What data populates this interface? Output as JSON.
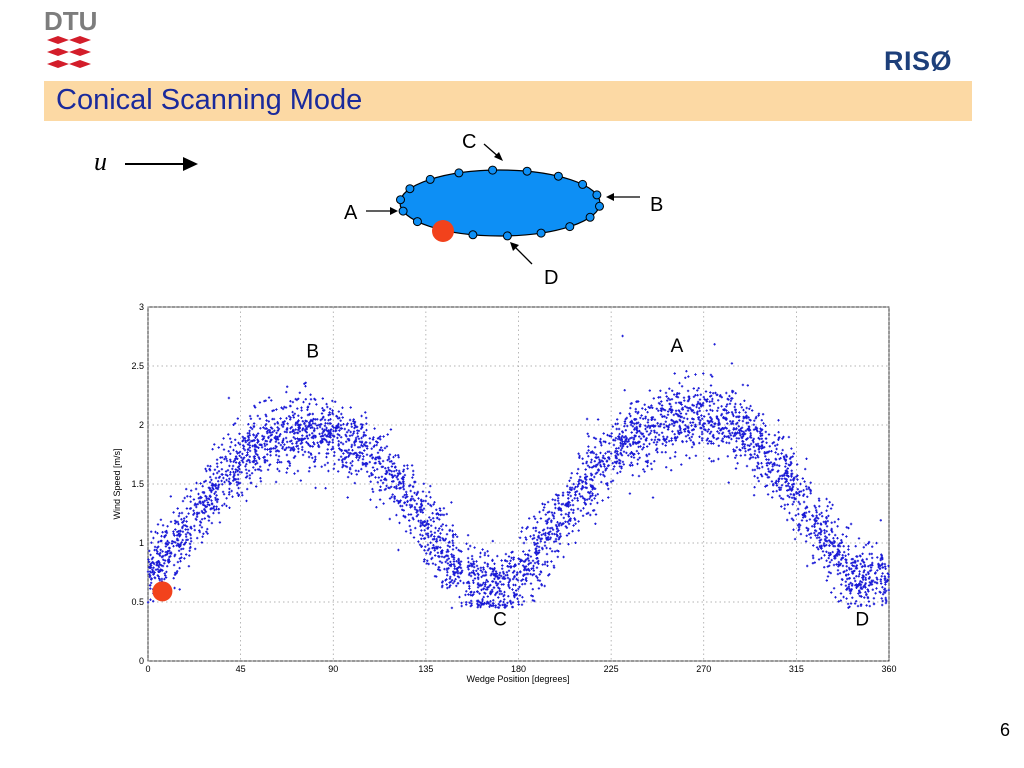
{
  "header": {
    "dtu_logo_text": "DTU",
    "riso_logo_text": "RISØ",
    "title": "Conical Scanning Mode"
  },
  "diagram": {
    "flow_symbol": "u",
    "labels": {
      "A": "A",
      "B": "B",
      "C": "C",
      "D": "D"
    },
    "colors": {
      "ellipse_fill": "#0d8ff5",
      "marker": "#f2421c"
    }
  },
  "chart_data": {
    "type": "scatter",
    "title": "",
    "xlabel": "Wedge Position [degrees]",
    "ylabel": "Wind Speed [m/s]",
    "xlim": [
      0,
      360
    ],
    "ylim": [
      0,
      3
    ],
    "xticks": [
      "0",
      "45",
      "90",
      "135",
      "180",
      "225",
      "270",
      "315",
      "360"
    ],
    "yticks": [
      "0",
      "0.5",
      "1",
      "1.5",
      "2",
      "2.5",
      "3"
    ],
    "grid": true,
    "trend": [
      {
        "x": 0,
        "y": 0.75
      },
      {
        "x": 15,
        "y": 1.02
      },
      {
        "x": 30,
        "y": 1.42
      },
      {
        "x": 45,
        "y": 1.72
      },
      {
        "x": 60,
        "y": 1.9
      },
      {
        "x": 80,
        "y": 1.98
      },
      {
        "x": 100,
        "y": 1.85
      },
      {
        "x": 120,
        "y": 1.55
      },
      {
        "x": 140,
        "y": 1.0
      },
      {
        "x": 155,
        "y": 0.7
      },
      {
        "x": 168,
        "y": 0.62
      },
      {
        "x": 180,
        "y": 0.72
      },
      {
        "x": 195,
        "y": 1.05
      },
      {
        "x": 210,
        "y": 1.45
      },
      {
        "x": 230,
        "y": 1.85
      },
      {
        "x": 250,
        "y": 2.03
      },
      {
        "x": 270,
        "y": 2.1
      },
      {
        "x": 290,
        "y": 1.95
      },
      {
        "x": 310,
        "y": 1.55
      },
      {
        "x": 330,
        "y": 1.0
      },
      {
        "x": 345,
        "y": 0.68
      },
      {
        "x": 360,
        "y": 0.72
      }
    ],
    "spread": 0.15,
    "floor": 0.45,
    "point_count": 5200,
    "marker_point": {
      "x": 7,
      "y": 0.59
    },
    "annotations": [
      {
        "text": "B",
        "x": 80,
        "y": 2.57
      },
      {
        "text": "A",
        "x": 257,
        "y": 2.62
      },
      {
        "text": "C",
        "x": 171,
        "y": 0.3
      },
      {
        "text": "D",
        "x": 347,
        "y": 0.3
      }
    ],
    "colors": {
      "points": "#1a1ad6",
      "marker": "#f2421c"
    }
  },
  "footer": {
    "page_number": "6"
  }
}
